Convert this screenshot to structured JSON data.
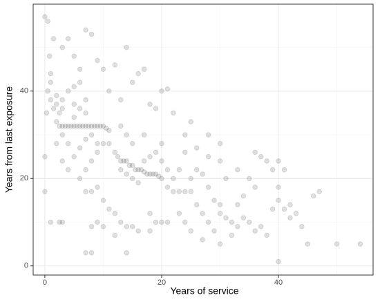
{
  "chart_data": {
    "type": "scatter",
    "xlabel": "Years of service",
    "ylabel": "Years from last exposure",
    "xlim": [
      -2.0,
      56.2
    ],
    "ylim": [
      -2.1,
      59.9
    ],
    "xticks": [
      0,
      20,
      40
    ],
    "yticks": [
      0,
      20,
      40
    ],
    "xminor": [
      10,
      30,
      50
    ],
    "yminor": [
      10,
      30,
      50
    ],
    "grid": true,
    "color": "#000000",
    "opacity": 0.12,
    "x": [
      0,
      0.5,
      0.3,
      0.5,
      1,
      1,
      1.5,
      2,
      2,
      2.5,
      3,
      3,
      0,
      0,
      1,
      2.5,
      3,
      1,
      0.8,
      1.5,
      2,
      2.5,
      3,
      3.5,
      4,
      4.5,
      5,
      5.5,
      6,
      6.5,
      7,
      7.5,
      8,
      8.5,
      9,
      9.5,
      10,
      10.5,
      11,
      3,
      4,
      5,
      5,
      6,
      7,
      4,
      5,
      6,
      7,
      8,
      9,
      10,
      11,
      9,
      8,
      7,
      6,
      5,
      4,
      3,
      2,
      6,
      7,
      3,
      4,
      5,
      6,
      7,
      8,
      9,
      10,
      12,
      14,
      17,
      11,
      13,
      15,
      16,
      20,
      21,
      18,
      19,
      22,
      25,
      24,
      28,
      30,
      12,
      12.5,
      13,
      13.5,
      14,
      14.5,
      15,
      15.5,
      16,
      16.5,
      17,
      17.5,
      18,
      18.5,
      19,
      19.5,
      20,
      13,
      14,
      15,
      16,
      17,
      18,
      19,
      20,
      21,
      22,
      21,
      22,
      23,
      24,
      25,
      20,
      17,
      15,
      14,
      13,
      7,
      8,
      9,
      10,
      11,
      12,
      13,
      14,
      15,
      16,
      9,
      10,
      8,
      7,
      8,
      14,
      12,
      18,
      19,
      20,
      21,
      18,
      25,
      26,
      27,
      28,
      29,
      30,
      30,
      31,
      32,
      33,
      34,
      35,
      36,
      37,
      38,
      26,
      27,
      28,
      29,
      30,
      32,
      33,
      34,
      35,
      36,
      37,
      38,
      39,
      40,
      40,
      41,
      40,
      41,
      42,
      43,
      44,
      45,
      46,
      47,
      50,
      54,
      40,
      42,
      39,
      36,
      33,
      31,
      30,
      28,
      26,
      24,
      23,
      27,
      25,
      24,
      23
    ],
    "y": [
      57,
      56,
      35,
      40,
      42,
      38,
      36,
      37,
      39,
      35,
      38,
      36,
      25,
      17,
      10,
      10,
      10,
      44,
      48,
      52,
      33,
      32,
      32,
      32,
      32,
      32,
      32,
      32,
      32,
      32,
      32,
      32,
      32,
      32,
      32,
      32,
      32,
      31.5,
      31,
      30,
      28,
      34,
      37,
      36,
      35,
      40,
      41,
      42,
      38,
      30,
      28,
      28,
      28,
      26,
      24,
      22,
      20,
      25,
      22,
      24,
      28,
      27,
      29,
      50,
      52,
      48,
      45,
      54,
      53,
      47,
      45,
      46,
      50,
      45,
      40,
      38,
      42,
      44,
      40,
      40.5,
      37,
      36,
      35,
      33,
      30,
      30,
      28,
      26,
      25,
      24,
      24,
      24,
      23,
      23,
      22,
      22,
      22,
      21.5,
      21,
      21,
      21,
      21,
      20.5,
      20,
      22,
      21,
      20,
      19,
      24,
      25,
      26,
      24,
      22,
      20,
      18,
      17,
      17,
      17,
      17,
      28,
      30,
      28,
      30,
      32,
      17,
      17,
      18,
      15,
      13,
      12,
      10,
      9,
      9,
      8,
      10,
      9,
      9,
      3,
      3,
      3,
      7,
      12,
      10,
      10,
      10,
      8,
      20,
      22,
      21,
      18,
      15,
      14,
      12,
      11,
      10,
      9,
      11,
      10,
      8,
      9,
      7,
      14,
      12,
      10,
      8,
      5,
      7,
      14,
      16,
      20,
      26,
      25,
      24,
      22,
      18,
      24,
      22,
      15,
      13,
      14,
      12,
      9,
      5,
      16,
      17,
      5,
      5,
      1,
      11,
      13,
      18,
      22,
      20,
      24,
      25,
      27,
      26,
      22,
      6,
      8,
      10,
      12
    ]
  }
}
